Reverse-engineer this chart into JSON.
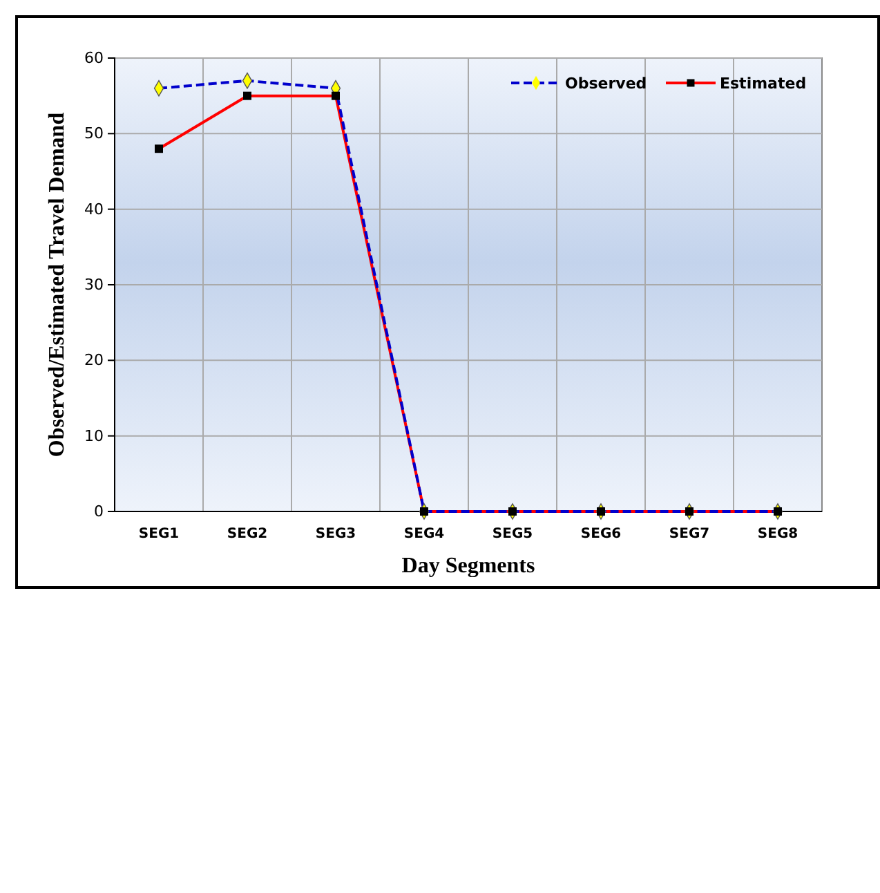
{
  "chart_data": {
    "type": "line",
    "xlabel": "Day Segments",
    "ylabel": "Observed/Estimated Travel Demand",
    "categories": [
      "SEG1",
      "SEG2",
      "SEG3",
      "SEG4",
      "SEG5",
      "SEG6",
      "SEG7",
      "SEG8"
    ],
    "series": [
      {
        "name": "Observed",
        "color": "#0000cc",
        "values": [
          56,
          57,
          56,
          0,
          0,
          0,
          0,
          0
        ],
        "marker": "diamond",
        "line_style": "dashed"
      },
      {
        "name": "Estimated",
        "color": "#ff0000",
        "values": [
          48,
          55,
          55,
          0,
          0,
          0,
          0,
          0
        ],
        "marker": "square",
        "line_style": "solid"
      }
    ],
    "ylim": [
      0,
      60
    ],
    "yticks": [
      0,
      10,
      20,
      30,
      40,
      50,
      60
    ],
    "grid": true,
    "legend": "top right"
  }
}
